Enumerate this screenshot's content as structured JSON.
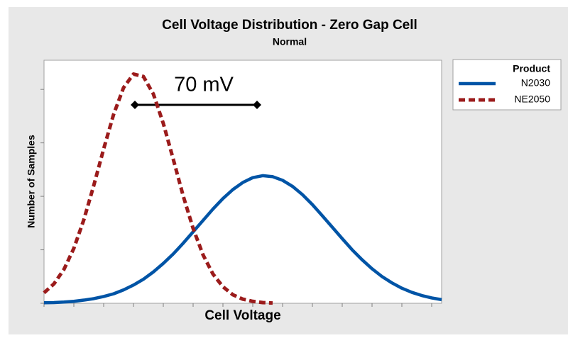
{
  "chart_data": {
    "type": "line",
    "title": "Cell Voltage Distribution - Zero Gap Cell",
    "subtitle": "Normal",
    "x_label": "Cell Voltage",
    "y_label": "Number of Samples",
    "legend_title": "Product",
    "annotation": "70 mV",
    "x": [
      0,
      2.5,
      5,
      7.5,
      10,
      12.5,
      15,
      17.5,
      20,
      22.5,
      25,
      27.5,
      30,
      32.5,
      35,
      37.5,
      40,
      42.5,
      45,
      47.5,
      50,
      52.5,
      55,
      57.5,
      60,
      62.5,
      65,
      67.5,
      70,
      72.5,
      75,
      77.5,
      80,
      82.5,
      85,
      87.5,
      90,
      92.5,
      95,
      97.5,
      100
    ],
    "series": [
      {
        "name": "N2030",
        "color": "#0054a6",
        "dash": "solid",
        "values": [
          0.2,
          0.3,
          0.5,
          0.8,
          1.3,
          1.9,
          2.8,
          3.9,
          5.5,
          7.5,
          9.9,
          12.9,
          16.4,
          20.3,
          24.7,
          29.4,
          34.1,
          38.8,
          43.1,
          46.8,
          49.7,
          51.7,
          52.5,
          52.1,
          50.6,
          48.1,
          44.7,
          40.6,
          36.0,
          31.3,
          26.6,
          22.0,
          17.9,
          14.2,
          11.0,
          8.4,
          6.2,
          4.5,
          3.2,
          2.2,
          1.5
        ]
      },
      {
        "name": "NE2050",
        "color": "#9b1b1b",
        "dash": "dashed",
        "values": [
          4.3,
          8.0,
          13.9,
          22.6,
          34.3,
          48.4,
          63.5,
          77.7,
          88.7,
          94.3,
          93.3,
          86.1,
          74.0,
          59.3,
          44.2,
          30.8,
          19.9,
          12.0,
          6.8,
          3.5,
          1.7,
          0.8,
          0.3,
          0.1,
          null,
          null,
          null,
          null,
          null,
          null,
          null,
          null,
          null,
          null,
          null,
          null,
          null,
          null,
          null,
          null,
          null
        ]
      }
    ],
    "xlim": [
      0,
      100
    ],
    "ylim": [
      0,
      100
    ],
    "xticks": [
      0,
      7.5,
      15,
      22.5,
      30,
      37.5,
      45,
      52.5,
      60,
      67.5,
      75,
      82.5,
      90,
      97.5
    ],
    "yticks": [
      0,
      22,
      44,
      66,
      88
    ],
    "grid": false
  }
}
